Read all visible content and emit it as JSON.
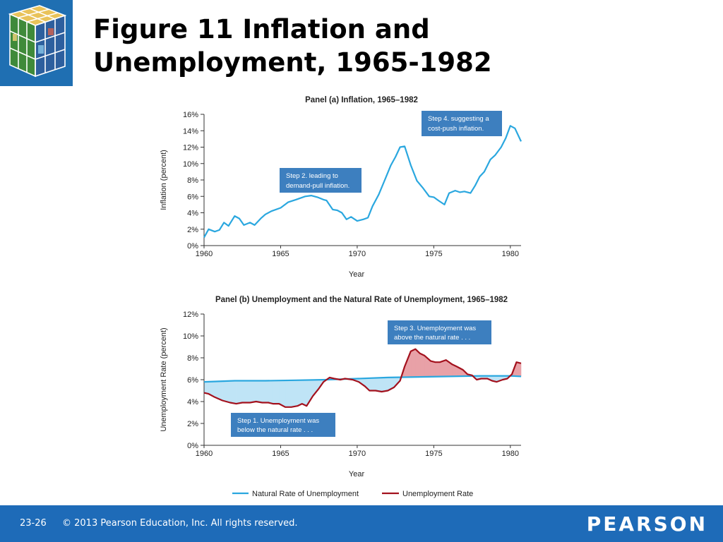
{
  "slide": {
    "title_line1": "Figure 11  Inflation and",
    "title_line2": "Unemployment, 1965-1982"
  },
  "footer": {
    "page_number": "23-26",
    "copyright": "© 2013 Pearson Education, Inc. All rights reserved.",
    "brand": "PEARSON"
  },
  "colors": {
    "natural_rate": "#2aa7df",
    "unemployment": "#a3111d",
    "gap_above": "#e8a1a7",
    "gap_below": "#bfe4f6",
    "callout_bg": "#3d7fbf",
    "footer_bg": "#1e6bb8"
  },
  "chart_data": [
    {
      "type": "line",
      "title": "Panel (a) Inflation, 1965–1982",
      "xlabel": "Year",
      "ylabel": "Inflation (percent)",
      "xlim": [
        1960,
        1980.7
      ],
      "ylim": [
        0,
        16
      ],
      "x_ticks": [
        1960,
        1965,
        1970,
        1975,
        1980
      ],
      "x_tick_labels": [
        "1960",
        "1965",
        "1970",
        "1975",
        "1980"
      ],
      "y_ticks": [
        0,
        2,
        4,
        6,
        8,
        10,
        12,
        14,
        16
      ],
      "y_tick_labels": [
        "0%",
        "2%",
        "4%",
        "6%",
        "8%",
        "10%",
        "12%",
        "14%",
        "16%"
      ],
      "grid": false,
      "series": [
        {
          "name": "",
          "x": [
            1960,
            1960.3,
            1960.7,
            1961,
            1961.3,
            1961.6,
            1962,
            1962.3,
            1962.6,
            1963,
            1963.3,
            1963.7,
            1964,
            1964.4,
            1965,
            1965.5,
            1966,
            1966.6,
            1967,
            1967.4,
            1967.8,
            1968,
            1968.4,
            1968.7,
            1969,
            1969.3,
            1969.6,
            1970,
            1970.4,
            1970.7,
            1971,
            1971.4,
            1971.8,
            1972.2,
            1972.5,
            1972.8,
            1973.1,
            1973.5,
            1973.9,
            1974.3,
            1974.7,
            1975,
            1975.3,
            1975.7,
            1976,
            1976.4,
            1976.7,
            1977,
            1977.4,
            1977.7,
            1978,
            1978.3,
            1978.7,
            1979,
            1979.4,
            1979.7,
            1980,
            1980.3,
            1980.7
          ],
          "values": [
            1.0,
            2.0,
            1.7,
            1.9,
            2.8,
            2.4,
            3.6,
            3.3,
            2.5,
            2.8,
            2.5,
            3.3,
            3.8,
            4.2,
            4.6,
            5.3,
            5.6,
            6.0,
            6.1,
            5.9,
            5.6,
            5.5,
            4.4,
            4.3,
            4.0,
            3.2,
            3.5,
            3.0,
            3.2,
            3.4,
            4.8,
            6.2,
            8.0,
            9.8,
            10.8,
            12.0,
            12.1,
            9.8,
            7.9,
            7.0,
            6.0,
            5.9,
            5.5,
            5.0,
            6.4,
            6.7,
            6.5,
            6.6,
            6.4,
            7.3,
            8.4,
            9.0,
            10.5,
            11.0,
            12.0,
            13.1,
            14.6,
            14.3,
            12.7
          ]
        }
      ],
      "annotations": [
        {
          "text_line1": "Step 2. leading to",
          "text_line2": "demand-pull inflation."
        },
        {
          "text_line1": "Step 4. suggesting a",
          "text_line2": "cost-push inflation."
        }
      ]
    },
    {
      "type": "line",
      "title": "Panel (b) Unemployment and the Natural Rate of Unemployment, 1965–1982",
      "xlabel": "Year",
      "ylabel": "Unemployment Rate (percent)",
      "xlim": [
        1960,
        1980.7
      ],
      "ylim": [
        0,
        12
      ],
      "x_ticks": [
        1960,
        1965,
        1970,
        1975,
        1980
      ],
      "x_tick_labels": [
        "1960",
        "1965",
        "1970",
        "1975",
        "1980"
      ],
      "y_ticks": [
        0,
        2,
        4,
        6,
        8,
        10,
        12
      ],
      "y_tick_labels": [
        "0%",
        "2%",
        "4%",
        "6%",
        "8%",
        "10%",
        "12%"
      ],
      "grid": false,
      "legend_position": "bottom",
      "series": [
        {
          "name": "Natural Rate of Unemployment",
          "x": [
            1960,
            1962,
            1964,
            1966,
            1968,
            1970,
            1972,
            1974,
            1976,
            1978,
            1980,
            1980.7
          ],
          "values": [
            5.8,
            5.9,
            5.9,
            5.95,
            6.0,
            6.1,
            6.2,
            6.25,
            6.3,
            6.35,
            6.35,
            6.3
          ]
        },
        {
          "name": "Unemployment Rate",
          "x": [
            1960,
            1960.3,
            1960.7,
            1961.2,
            1961.7,
            1962.1,
            1962.5,
            1963,
            1963.4,
            1963.8,
            1964.2,
            1964.5,
            1964.9,
            1965.3,
            1965.7,
            1966.1,
            1966.4,
            1966.7,
            1967.1,
            1967.5,
            1967.8,
            1968.2,
            1968.5,
            1968.9,
            1969.2,
            1969.7,
            1970.1,
            1970.5,
            1970.8,
            1971.2,
            1971.6,
            1972,
            1972.4,
            1972.8,
            1973.1,
            1973.5,
            1973.8,
            1974.1,
            1974.4,
            1974.8,
            1975.1,
            1975.4,
            1975.8,
            1976.2,
            1976.5,
            1976.9,
            1977.2,
            1977.5,
            1977.8,
            1978.1,
            1978.5,
            1978.8,
            1979.1,
            1979.5,
            1979.8,
            1980.1,
            1980.4,
            1980.7
          ],
          "values": [
            4.8,
            4.7,
            4.4,
            4.1,
            3.9,
            3.8,
            3.9,
            3.9,
            4.0,
            3.9,
            3.9,
            3.8,
            3.8,
            3.5,
            3.5,
            3.6,
            3.8,
            3.6,
            4.5,
            5.2,
            5.8,
            6.2,
            6.1,
            6.0,
            6.1,
            6.0,
            5.8,
            5.4,
            5.0,
            5.0,
            4.9,
            5.0,
            5.3,
            5.9,
            7.2,
            8.6,
            8.8,
            8.4,
            8.2,
            7.7,
            7.6,
            7.6,
            7.8,
            7.4,
            7.2,
            6.9,
            6.5,
            6.4,
            6.0,
            6.1,
            6.1,
            5.9,
            5.8,
            6.0,
            6.1,
            6.5,
            7.6,
            7.5
          ]
        }
      ],
      "annotations": [
        {
          "text_line1": "Step 1. Unemployment was",
          "text_line2": "below the natural rate . . ."
        },
        {
          "text_line1": "Step 3. Unemployment was",
          "text_line2": "above the natural rate . . ."
        }
      ]
    }
  ]
}
